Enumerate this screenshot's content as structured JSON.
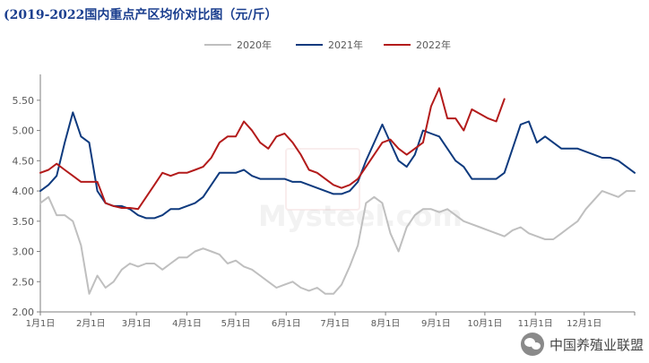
{
  "header": {
    "title": "(2019-2022国内重点产区均价对比图（元/斤）"
  },
  "watermark": {
    "text": "Mysteel.com"
  },
  "footer": {
    "brand": "中国养殖业联盟",
    "icon": "wechat-icon"
  },
  "chart_data": {
    "type": "line",
    "title": "(2019-2022国内重点产区均价对比图（元/斤）",
    "xlabel": "",
    "ylabel": "",
    "ylim": [
      2.0,
      5.75
    ],
    "yticks": [
      "2.00",
      "2.50",
      "3.00",
      "3.50",
      "4.00",
      "4.50",
      "5.00",
      "5.50"
    ],
    "xticks": [
      "1月1日",
      "2月1日",
      "3月1日",
      "4月1日",
      "5月1日",
      "6月1日",
      "7月1日",
      "8月1日",
      "9月1日",
      "10月1日",
      "11月1日",
      "12月1日"
    ],
    "grid": false,
    "legend_position": "top-center",
    "x_unit": "day-of-year",
    "series": [
      {
        "name": "2020年",
        "color": "#bfbfbf",
        "x": [
          0,
          5,
          10,
          15,
          20,
          25,
          30,
          35,
          40,
          45,
          50,
          55,
          60,
          65,
          70,
          75,
          80,
          85,
          90,
          95,
          100,
          105,
          110,
          115,
          120,
          125,
          130,
          135,
          140,
          145,
          150,
          155,
          160,
          165,
          170,
          175,
          180,
          185,
          190,
          195,
          200,
          205,
          210,
          215,
          220,
          225,
          230,
          235,
          240,
          245,
          250,
          255,
          260,
          265,
          270,
          275,
          280,
          285,
          290,
          295,
          300,
          305,
          310,
          315,
          320,
          325,
          330,
          335,
          340,
          345,
          350,
          355,
          360,
          365
        ],
        "values": [
          3.8,
          3.9,
          3.6,
          3.6,
          3.5,
          3.1,
          2.3,
          2.6,
          2.4,
          2.5,
          2.7,
          2.8,
          2.75,
          2.8,
          2.8,
          2.7,
          2.8,
          2.9,
          2.9,
          3.0,
          3.05,
          3.0,
          2.95,
          2.8,
          2.85,
          2.75,
          2.7,
          2.6,
          2.5,
          2.4,
          2.45,
          2.5,
          2.4,
          2.35,
          2.4,
          2.3,
          2.3,
          2.45,
          2.75,
          3.1,
          3.8,
          3.9,
          3.8,
          3.3,
          3.0,
          3.4,
          3.6,
          3.7,
          3.7,
          3.65,
          3.7,
          3.6,
          3.5,
          3.45,
          3.4,
          3.35,
          3.3,
          3.25,
          3.35,
          3.4,
          3.3,
          3.25,
          3.2,
          3.2,
          3.3,
          3.4,
          3.5,
          3.7,
          3.85,
          4.0,
          3.95,
          3.9,
          4.0,
          4.0
        ]
      },
      {
        "name": "2021年",
        "color": "#0e3a7e",
        "x": [
          0,
          5,
          10,
          15,
          20,
          25,
          30,
          35,
          40,
          45,
          50,
          55,
          60,
          65,
          70,
          75,
          80,
          85,
          90,
          95,
          100,
          105,
          110,
          115,
          120,
          125,
          130,
          135,
          140,
          145,
          150,
          155,
          160,
          165,
          170,
          175,
          180,
          185,
          190,
          195,
          200,
          205,
          210,
          215,
          220,
          225,
          230,
          235,
          240,
          245,
          250,
          255,
          260,
          265,
          270,
          275,
          280,
          285,
          290,
          295,
          300,
          305,
          310,
          315,
          320,
          325,
          330,
          335,
          340,
          345,
          350,
          355,
          360,
          365
        ],
        "values": [
          4.0,
          4.1,
          4.25,
          4.8,
          5.3,
          4.9,
          4.8,
          4.0,
          3.8,
          3.75,
          3.75,
          3.7,
          3.6,
          3.55,
          3.55,
          3.6,
          3.7,
          3.7,
          3.75,
          3.8,
          3.9,
          4.1,
          4.3,
          4.3,
          4.3,
          4.35,
          4.25,
          4.2,
          4.2,
          4.2,
          4.2,
          4.15,
          4.15,
          4.1,
          4.05,
          4.0,
          3.95,
          3.95,
          4.0,
          4.15,
          4.5,
          4.8,
          5.1,
          4.8,
          4.5,
          4.4,
          4.6,
          5.0,
          4.95,
          4.9,
          4.7,
          4.5,
          4.4,
          4.2,
          4.2,
          4.2,
          4.2,
          4.3,
          4.7,
          5.1,
          5.15,
          4.8,
          4.9,
          4.8,
          4.7,
          4.7,
          4.7,
          4.65,
          4.6,
          4.55,
          4.55,
          4.5,
          4.4,
          4.3
        ]
      },
      {
        "name": "2022年",
        "color": "#b31b1b",
        "x": [
          0,
          5,
          10,
          15,
          20,
          25,
          30,
          35,
          40,
          45,
          50,
          55,
          60,
          65,
          70,
          75,
          80,
          85,
          90,
          95,
          100,
          105,
          110,
          115,
          120,
          125,
          130,
          135,
          140,
          145,
          150,
          155,
          160,
          165,
          170,
          175,
          180,
          185,
          190,
          195,
          200,
          205,
          210,
          215,
          220,
          225,
          230,
          235,
          240,
          245,
          250,
          255,
          260,
          265,
          275,
          280,
          285
        ],
        "values": [
          4.3,
          4.35,
          4.45,
          4.35,
          4.25,
          4.15,
          4.15,
          4.15,
          3.8,
          3.75,
          3.72,
          3.72,
          3.7,
          3.9,
          4.1,
          4.3,
          4.25,
          4.3,
          4.3,
          4.35,
          4.4,
          4.55,
          4.8,
          4.9,
          4.9,
          5.15,
          5.0,
          4.8,
          4.7,
          4.9,
          4.95,
          4.8,
          4.6,
          4.35,
          4.3,
          4.2,
          4.1,
          4.05,
          4.1,
          4.2,
          4.4,
          4.6,
          4.8,
          4.85,
          4.7,
          4.6,
          4.7,
          4.8,
          5.4,
          5.7,
          5.2,
          5.2,
          5.0,
          5.35,
          5.2,
          5.15,
          5.52
        ]
      }
    ]
  }
}
